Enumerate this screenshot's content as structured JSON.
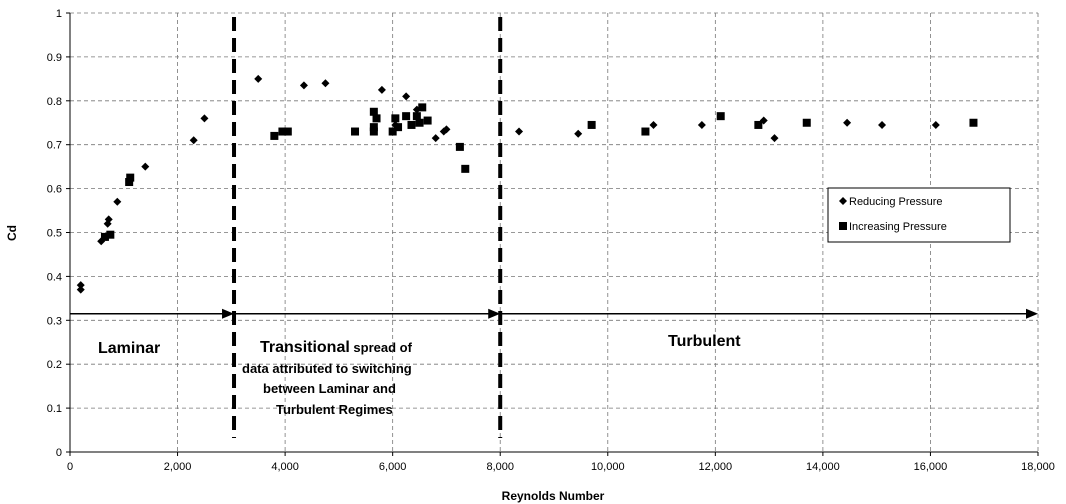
{
  "chart_data": {
    "type": "scatter",
    "title": "",
    "xlabel": "Reynolds Number",
    "ylabel": "Cd",
    "xlim": [
      0,
      18000
    ],
    "ylim": [
      0,
      1
    ],
    "x_ticks": [
      "0",
      "2,000",
      "4,000",
      "6,000",
      "8,000",
      "10,000",
      "12,000",
      "14,000",
      "16,000",
      "18,000"
    ],
    "y_ticks": [
      "0",
      "0.1",
      "0.2",
      "0.3",
      "0.4",
      "0.5",
      "0.6",
      "0.7",
      "0.8",
      "0.9",
      "1"
    ],
    "grid": "dashed",
    "legend_position": "right",
    "series": [
      {
        "name": "Reducing Pressure",
        "marker": "diamond",
        "points": [
          [
            200,
            0.38
          ],
          [
            200,
            0.37
          ],
          [
            580,
            0.48
          ],
          [
            680,
            0.49
          ],
          [
            700,
            0.52
          ],
          [
            720,
            0.53
          ],
          [
            880,
            0.57
          ],
          [
            1400,
            0.65
          ],
          [
            2300,
            0.71
          ],
          [
            2500,
            0.76
          ],
          [
            3500,
            0.85
          ],
          [
            4350,
            0.835
          ],
          [
            4750,
            0.84
          ],
          [
            5800,
            0.825
          ],
          [
            6050,
            0.745
          ],
          [
            6250,
            0.81
          ],
          [
            6450,
            0.78
          ],
          [
            6800,
            0.715
          ],
          [
            6950,
            0.73
          ],
          [
            7000,
            0.735
          ],
          [
            8350,
            0.73
          ],
          [
            9450,
            0.725
          ],
          [
            10850,
            0.745
          ],
          [
            11750,
            0.745
          ],
          [
            12900,
            0.755
          ],
          [
            13100,
            0.715
          ],
          [
            14450,
            0.75
          ],
          [
            15100,
            0.745
          ],
          [
            16100,
            0.745
          ]
        ]
      },
      {
        "name": "Increasing Pressure",
        "marker": "square",
        "points": [
          [
            650,
            0.49
          ],
          [
            750,
            0.495
          ],
          [
            1100,
            0.615
          ],
          [
            1120,
            0.625
          ],
          [
            3800,
            0.72
          ],
          [
            3950,
            0.73
          ],
          [
            4050,
            0.73
          ],
          [
            5300,
            0.73
          ],
          [
            5650,
            0.73
          ],
          [
            5650,
            0.74
          ],
          [
            5700,
            0.76
          ],
          [
            5650,
            0.775
          ],
          [
            6000,
            0.73
          ],
          [
            6050,
            0.76
          ],
          [
            6100,
            0.74
          ],
          [
            6250,
            0.765
          ],
          [
            6350,
            0.745
          ],
          [
            6500,
            0.75
          ],
          [
            6550,
            0.785
          ],
          [
            6450,
            0.765
          ],
          [
            6650,
            0.755
          ],
          [
            7250,
            0.695
          ],
          [
            7350,
            0.645
          ],
          [
            9700,
            0.745
          ],
          [
            10700,
            0.73
          ],
          [
            12100,
            0.765
          ],
          [
            12800,
            0.745
          ],
          [
            13700,
            0.75
          ],
          [
            16800,
            0.75
          ]
        ]
      }
    ],
    "regime_lines_x": [
      3050,
      8000
    ],
    "regime_arrows": [
      {
        "x_start": 0,
        "x_end": 3050,
        "y": 0.315
      },
      {
        "x_start": 3050,
        "x_end": 8000,
        "y": 0.315
      },
      {
        "x_start": 8000,
        "x_end": 18000,
        "y": 0.315
      }
    ],
    "annotations": {
      "laminar": "Laminar",
      "transitional_bold": "Transitional",
      "transitional_rest_1": " spread of",
      "transitional_line_2": "data attributed to switching",
      "transitional_line_3": "between Laminar and",
      "transitional_line_4": "Turbulent Regimes",
      "turbulent": "Turbulent"
    }
  }
}
